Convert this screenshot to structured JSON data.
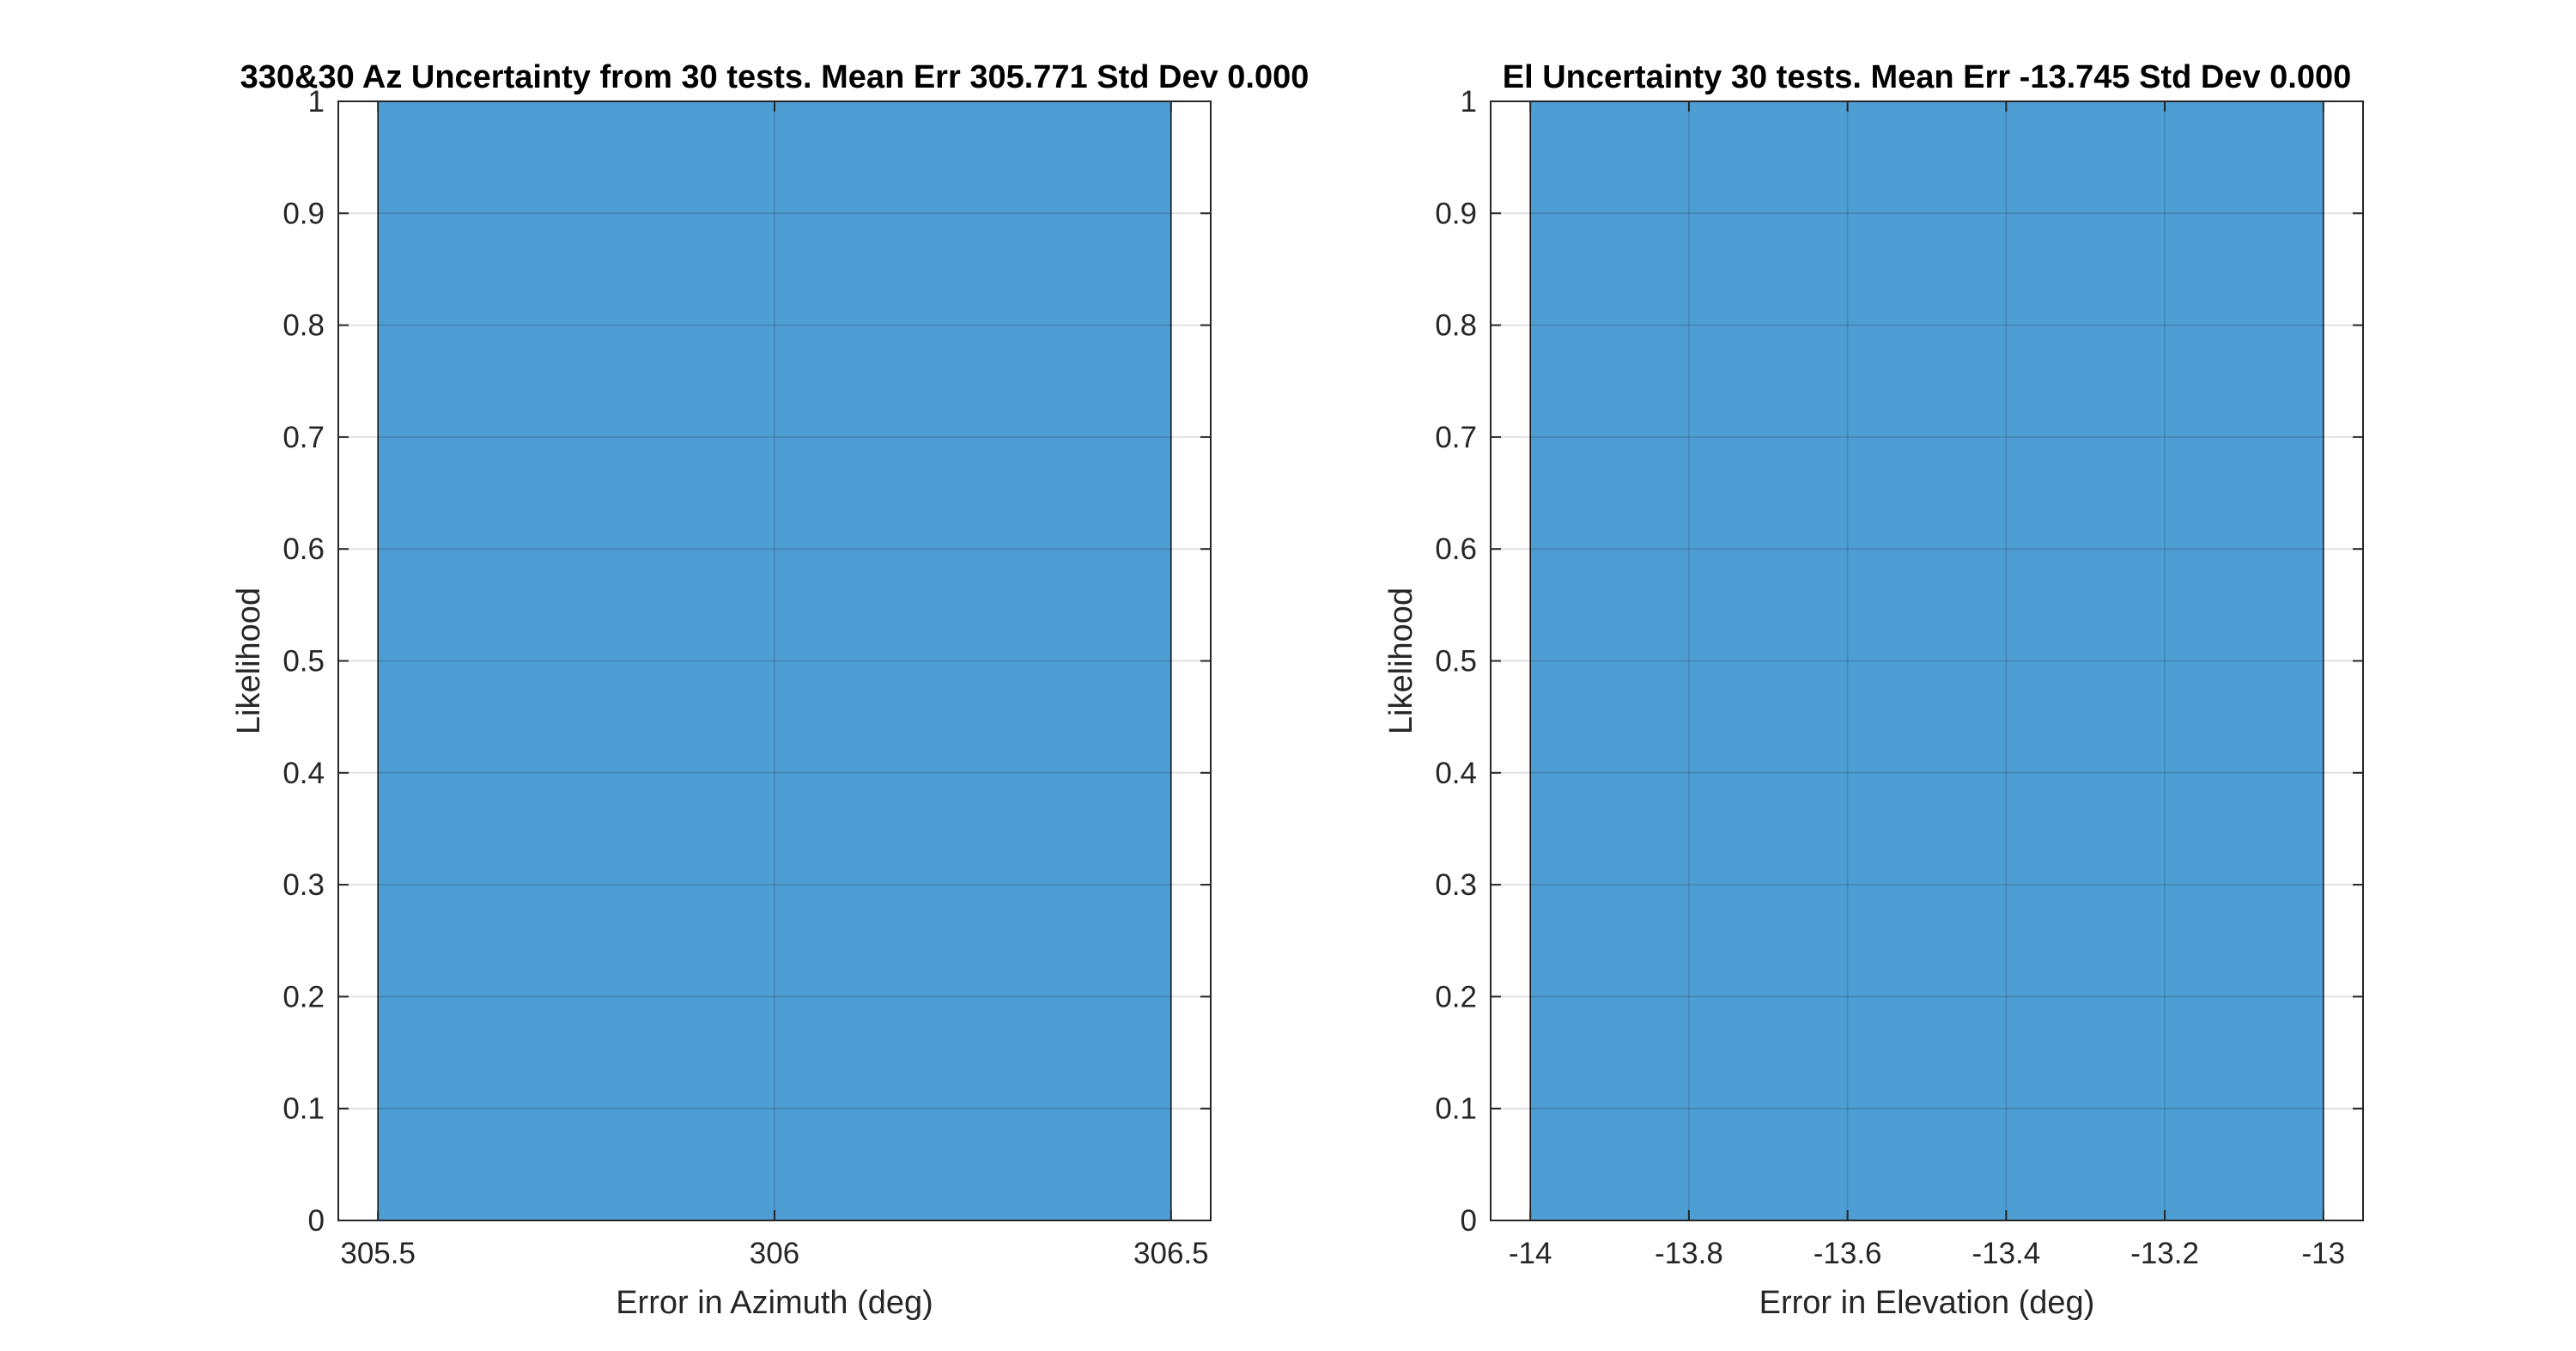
{
  "chart_data": [
    {
      "type": "bar",
      "title": "330&30 Az Uncertainty from 30 tests. Mean Err 305.771 Std Dev 0.000",
      "xlabel": "Error in Azimuth (deg)",
      "ylabel": "Likelihood",
      "xlim": [
        305.45,
        306.55
      ],
      "ylim": [
        0,
        1
      ],
      "xticks": [
        305.5,
        306,
        306.5
      ],
      "xtick_labels": [
        "305.5",
        "306",
        "306.5"
      ],
      "yticks": [
        0,
        0.1,
        0.2,
        0.3,
        0.4,
        0.5,
        0.6,
        0.7,
        0.8,
        0.9,
        1
      ],
      "ytick_labels": [
        "0",
        "0.1",
        "0.2",
        "0.3",
        "0.4",
        "0.5",
        "0.6",
        "0.7",
        "0.8",
        "0.9",
        "1"
      ],
      "grid": true,
      "bins": [
        {
          "x_start": 305.5,
          "x_end": 306.5,
          "value": 1
        }
      ],
      "bar_color": "#4e9ed4"
    },
    {
      "type": "bar",
      "title": "El Uncertainty 30 tests. Mean Err -13.745 Std Dev 0.000",
      "xlabel": "Error in Elevation (deg)",
      "ylabel": "Likelihood",
      "xlim": [
        -14.05,
        -12.95
      ],
      "ylim": [
        0,
        1
      ],
      "xticks": [
        -14,
        -13.8,
        -13.6,
        -13.4,
        -13.2,
        -13
      ],
      "xtick_labels": [
        "-14",
        "-13.8",
        "-13.6",
        "-13.4",
        "-13.2",
        "-13"
      ],
      "yticks": [
        0,
        0.1,
        0.2,
        0.3,
        0.4,
        0.5,
        0.6,
        0.7,
        0.8,
        0.9,
        1
      ],
      "ytick_labels": [
        "0",
        "0.1",
        "0.2",
        "0.3",
        "0.4",
        "0.5",
        "0.6",
        "0.7",
        "0.8",
        "0.9",
        "1"
      ],
      "grid": true,
      "bins": [
        {
          "x_start": -14,
          "x_end": -13,
          "value": 1
        }
      ],
      "bar_color": "#4e9ed4"
    }
  ]
}
